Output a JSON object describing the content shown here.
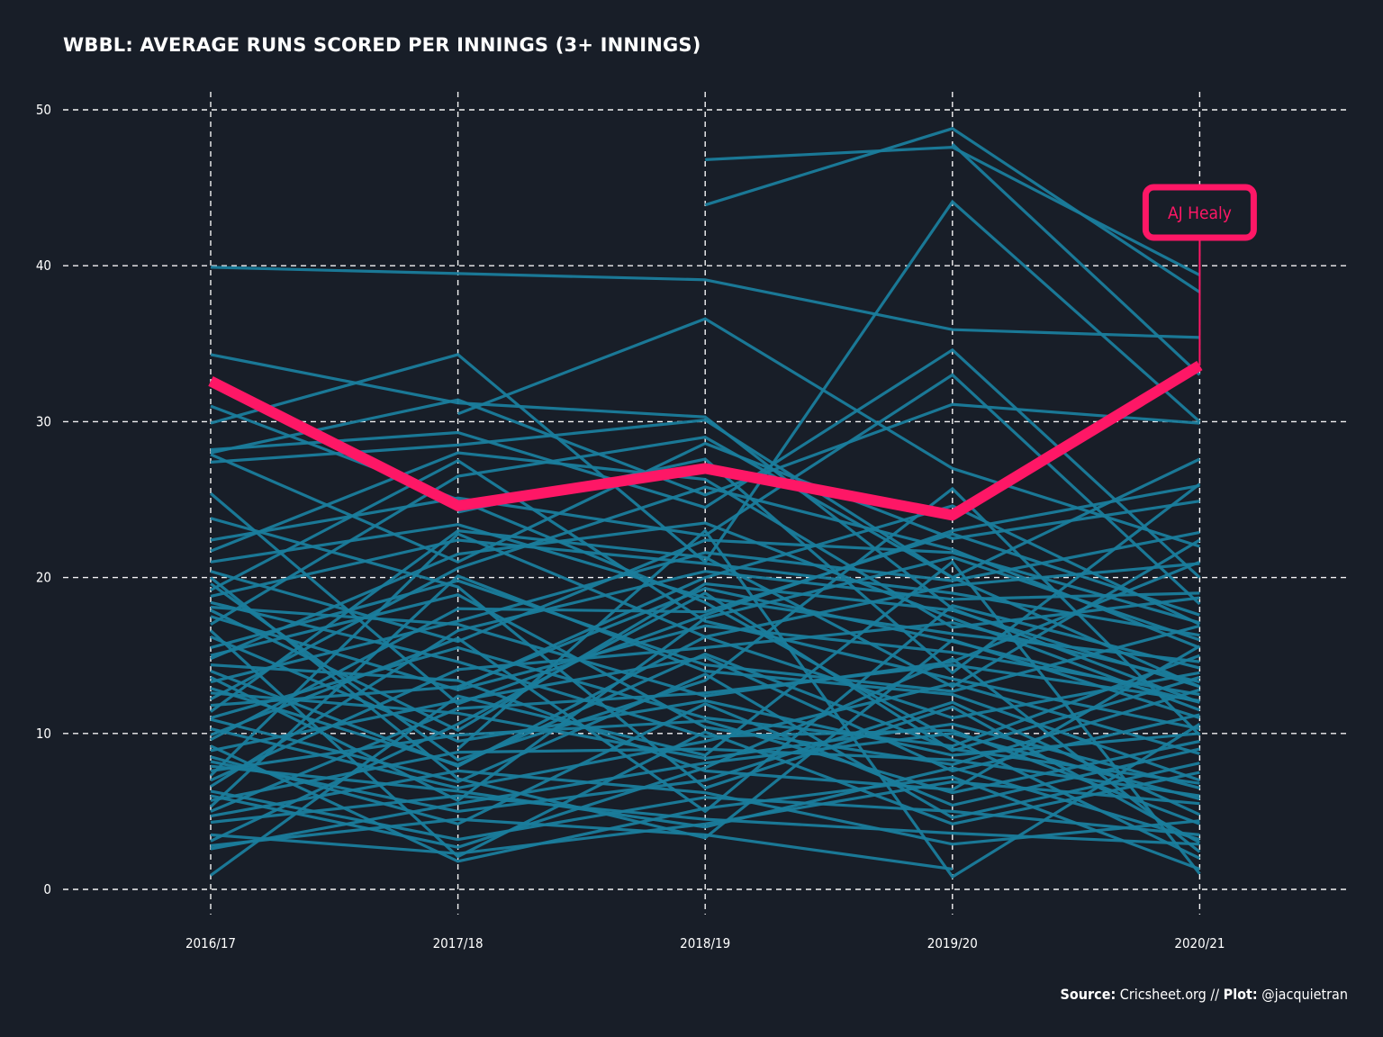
{
  "chart_data": {
    "type": "line",
    "title": "WBBL: AVERAGE RUNS SCORED PER INNINGS (3+ INNINGS)",
    "xlabel": "",
    "ylabel": "",
    "categories": [
      "2016/17",
      "2017/18",
      "2018/19",
      "2019/20",
      "2020/21"
    ],
    "y_ticks": [
      0,
      10,
      20,
      30,
      40,
      50
    ],
    "ylim": [
      0,
      50
    ],
    "grid": true,
    "colors": {
      "background": "#181e28",
      "series": "#1a7d9c",
      "highlight": "#fe1766",
      "text": "#ffffff"
    },
    "highlight": {
      "name": "AJ Healy",
      "values": [
        32.6,
        24.6,
        27.0,
        24.0,
        33.6
      ]
    },
    "series": [
      {
        "values": [
          39.9,
          39.5,
          39.1,
          35.9,
          35.4
        ]
      },
      {
        "values": [
          null,
          null,
          46.8,
          47.6,
          39.4
        ]
      },
      {
        "values": [
          null,
          null,
          43.9,
          48.8,
          38.3
        ]
      },
      {
        "values": [
          null,
          30.5,
          36.6,
          27.0,
          22.0
        ]
      },
      {
        "values": [
          null,
          null,
          null,
          47.8,
          33.0
        ]
      },
      {
        "values": [
          34.3,
          31.2,
          30.3,
          18.0,
          12.0
        ]
      },
      {
        "values": [
          29.9,
          34.3,
          21.0,
          44.1,
          30.0
        ]
      },
      {
        "values": [
          28.2,
          29.3,
          24.5,
          34.6,
          20.0
        ]
      },
      {
        "values": [
          28.0,
          31.4,
          25.3,
          31.1,
          29.9
        ]
      },
      {
        "values": [
          27.4,
          28.5,
          30.1,
          20.0,
          13.0
        ]
      },
      {
        "values": [
          25.4,
          11.9,
          17.6,
          23.0,
          25.9
        ]
      },
      {
        "values": [
          22.4,
          25.1,
          22.7,
          33.0,
          18.3
        ]
      },
      {
        "values": [
          21.0,
          23.4,
          18.7,
          16.4,
          14.6
        ]
      },
      {
        "values": [
          20.4,
          15.9,
          22.4,
          21.6,
          17.1
        ]
      },
      {
        "values": [
          19.6,
          8.3,
          13.4,
          25.7,
          9.9
        ]
      },
      {
        "values": [
          18.8,
          22.4,
          20.9,
          19.0,
          16.3
        ]
      },
      {
        "values": [
          18.1,
          17.0,
          12.4,
          14.6,
          21.0
        ]
      },
      {
        "values": [
          17.5,
          12.8,
          16.9,
          15.2,
          12.5
        ]
      },
      {
        "values": [
          17.0,
          26.5,
          29.0,
          20.0,
          27.6
        ]
      },
      {
        "values": [
          16.2,
          9.5,
          12.1,
          8.6,
          10.0
        ]
      },
      {
        "values": [
          15.5,
          19.8,
          14.4,
          12.7,
          16.9
        ]
      },
      {
        "values": [
          14.8,
          21.5,
          23.5,
          17.4,
          11.5
        ]
      },
      {
        "values": [
          14.0,
          7.9,
          16.2,
          11.0,
          13.9
        ]
      },
      {
        "values": [
          13.3,
          17.2,
          21.6,
          19.8,
          22.9
        ]
      },
      {
        "values": [
          12.6,
          11.3,
          8.4,
          10.6,
          6.5
        ]
      },
      {
        "values": [
          11.8,
          13.0,
          19.3,
          15.9,
          12.0
        ]
      },
      {
        "values": [
          11.0,
          15.5,
          11.0,
          9.2,
          15.0
        ]
      },
      {
        "values": [
          10.3,
          6.5,
          9.5,
          13.2,
          8.7
        ]
      },
      {
        "values": [
          9.6,
          18.0,
          17.8,
          22.8,
          17.6
        ]
      },
      {
        "values": [
          8.9,
          12.1,
          14.9,
          7.6,
          11.2
        ]
      },
      {
        "values": [
          8.2,
          5.0,
          7.0,
          12.0,
          4.8
        ]
      },
      {
        "values": [
          7.6,
          9.9,
          10.8,
          6.2,
          9.5
        ]
      },
      {
        "values": [
          7.0,
          14.1,
          15.5,
          17.1,
          13.3
        ]
      },
      {
        "values": [
          6.3,
          3.2,
          5.9,
          5.0,
          3.5
        ]
      },
      {
        "values": [
          5.7,
          8.8,
          9.0,
          8.3,
          6.0
        ]
      },
      {
        "values": [
          5.0,
          11.6,
          12.6,
          14.4,
          12.1
        ]
      },
      {
        "values": [
          4.3,
          6.0,
          4.5,
          3.6,
          2.9
        ]
      },
      {
        "values": [
          3.5,
          2.3,
          4.2,
          6.9,
          5.5
        ]
      },
      {
        "values": [
          2.8,
          4.5,
          3.5,
          1.3,
          null
        ]
      },
      {
        "values": [
          0.9,
          12.4,
          8.6,
          21.0,
          1.0
        ]
      },
      {
        "values": [
          31.0,
          25.0,
          18.4,
          9.6,
          2.0
        ]
      },
      {
        "values": [
          19.2,
          27.5,
          17.2,
          13.5,
          10.3
        ]
      },
      {
        "values": [
          23.8,
          19.4,
          6.5,
          11.7,
          3.0
        ]
      },
      {
        "values": [
          9.2,
          1.8,
          5.2,
          7.2,
          1.3
        ]
      },
      {
        "values": [
          12.2,
          20.6,
          25.8,
          21.8,
          15.5
        ]
      },
      {
        "values": [
          16.6,
          2.1,
          10.1,
          4.2,
          7.5
        ]
      },
      {
        "values": [
          6.6,
          16.6,
          20.4,
          18.6,
          19.0
        ]
      },
      {
        "values": [
          20.0,
          7.1,
          3.3,
          16.0,
          11.0
        ]
      },
      {
        "values": [
          null,
          9.0,
          23.0,
          0.8,
          10.6
        ]
      },
      {
        "values": [
          18.4,
          14.6,
          9.8,
          10.2,
          4.2
        ]
      },
      {
        "values": [
          null,
          24.2,
          27.6,
          13.9,
          26.0
        ]
      },
      {
        "values": [
          10.9,
          6.9,
          13.8,
          4.6,
          8.1
        ]
      },
      {
        "values": [
          3.1,
          10.6,
          19.0,
          8.9,
          13.6
        ]
      },
      {
        "values": [
          7.3,
          22.8,
          16.2,
          19.5,
          20.9
        ]
      },
      {
        "values": [
          14.4,
          13.4,
          7.6,
          6.4,
          15.6
        ]
      },
      {
        "values": [
          21.7,
          28.0,
          26.3,
          16.8,
          18.7
        ]
      },
      {
        "values": [
          8.5,
          4.2,
          11.9,
          5.4,
          9.0
        ]
      },
      {
        "values": [
          5.3,
          20.1,
          14.0,
          12.5,
          7.0
        ]
      },
      {
        "values": [
          13.6,
          5.7,
          17.4,
          21.3,
          16.0
        ]
      },
      {
        "values": [
          11.4,
          23.0,
          21.3,
          13.0,
          22.4
        ]
      },
      {
        "values": [
          4.7,
          7.6,
          6.2,
          2.9,
          4.4
        ]
      },
      {
        "values": [
          17.9,
          10.2,
          19.6,
          17.9,
          13.0
        ]
      },
      {
        "values": [
          2.6,
          5.5,
          8.1,
          10.0,
          5.8
        ]
      },
      {
        "values": [
          27.9,
          21.0,
          28.6,
          22.5,
          24.9
        ]
      },
      {
        "values": [
          15.0,
          18.9,
          10.4,
          8.0,
          12.8
        ]
      },
      {
        "values": [
          6.0,
          2.7,
          7.8,
          14.8,
          2.4
        ]
      },
      {
        "values": [
          9.9,
          16.1,
          5.0,
          18.2,
          14.2
        ]
      },
      {
        "values": [
          null,
          12.9,
          20.0,
          24.6,
          17.0
        ]
      },
      {
        "values": [
          12.9,
          8.0,
          15.1,
          9.0,
          6.8
        ]
      },
      {
        "values": [
          7.9,
          6.3,
          4.0,
          7.8,
          3.2
        ]
      }
    ],
    "annotations": [
      "AJ Healy"
    ]
  },
  "caption": {
    "source_label": "Source:",
    "source_text": " Cricsheet.org // ",
    "plot_label": "Plot:",
    "plot_text": " @jacquietran"
  }
}
